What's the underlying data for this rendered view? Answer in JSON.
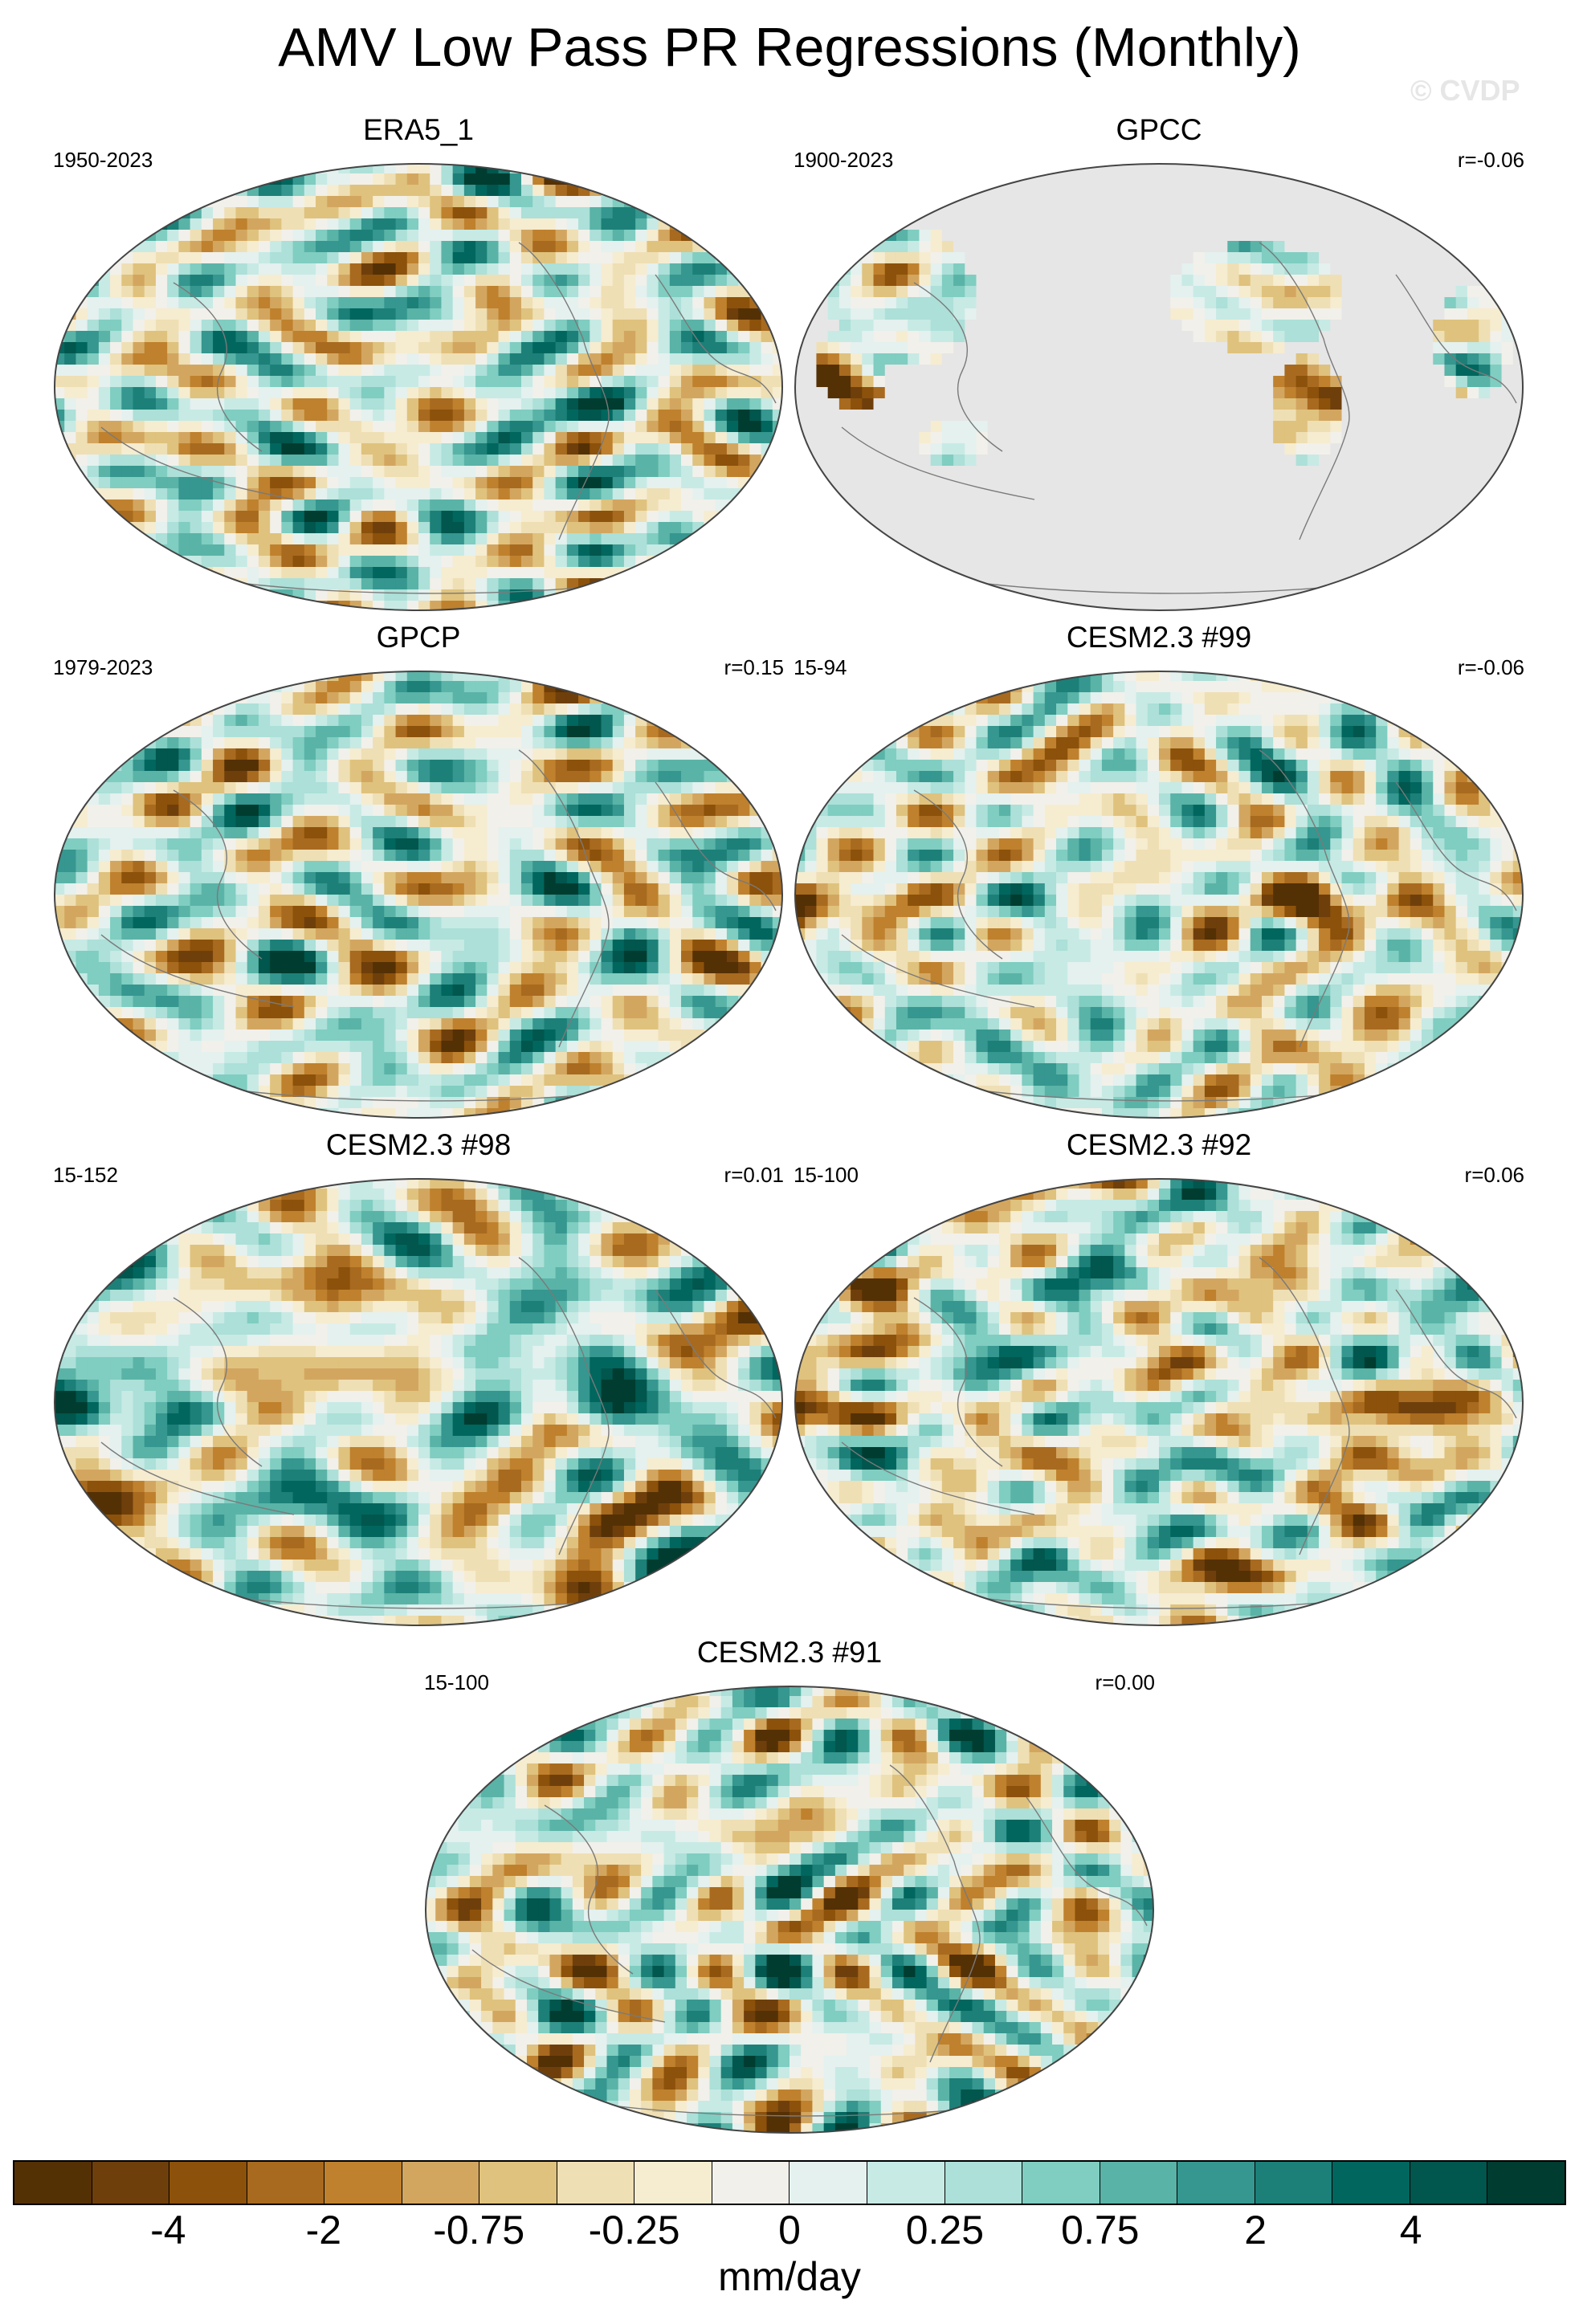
{
  "title": "AMV Low Pass PR Regressions (Monthly)",
  "watermark": "© CVDP",
  "panels": [
    {
      "title": "ERA5_1",
      "left_text": "1950-2023",
      "right_text": "",
      "dataset": "era5"
    },
    {
      "title": "GPCC",
      "left_text": "1900-2023",
      "right_text": "r=-0.06",
      "dataset": "gpcc"
    },
    {
      "title": "GPCP",
      "left_text": "1979-2023",
      "right_text": "r=0.15",
      "dataset": "gpcp"
    },
    {
      "title": "CESM2.3 #99",
      "left_text": "15-94",
      "right_text": "r=-0.06",
      "dataset": "cesm99"
    },
    {
      "title": "CESM2.3 #98",
      "left_text": "15-152",
      "right_text": "r=0.01",
      "dataset": "cesm98"
    },
    {
      "title": "CESM2.3 #92",
      "left_text": "15-100",
      "right_text": "r=0.06",
      "dataset": "cesm92"
    },
    {
      "title": "CESM2.3 #91",
      "left_text": "15-100",
      "right_text": "r=0.00",
      "dataset": "cesm91"
    }
  ],
  "colorbar": {
    "units": "mm/day",
    "labels": [
      "-4",
      "-2",
      "-0.75",
      "-0.25",
      "0",
      "0.25",
      "0.75",
      "2",
      "4"
    ],
    "colors": [
      "#543005",
      "#6f3f0b",
      "#8c510a",
      "#a86a1f",
      "#bf812d",
      "#d3a660",
      "#dfc27d",
      "#efdfb4",
      "#f6ecd0",
      "#f2f0ea",
      "#e4f1ef",
      "#c7eae5",
      "#ace0d8",
      "#80cdc1",
      "#5ab3a7",
      "#35978f",
      "#1c8078",
      "#01665e",
      "#01564d",
      "#003c30"
    ],
    "missing_color": "#e6e6e6",
    "coast_color": "#7a7a7a"
  }
}
